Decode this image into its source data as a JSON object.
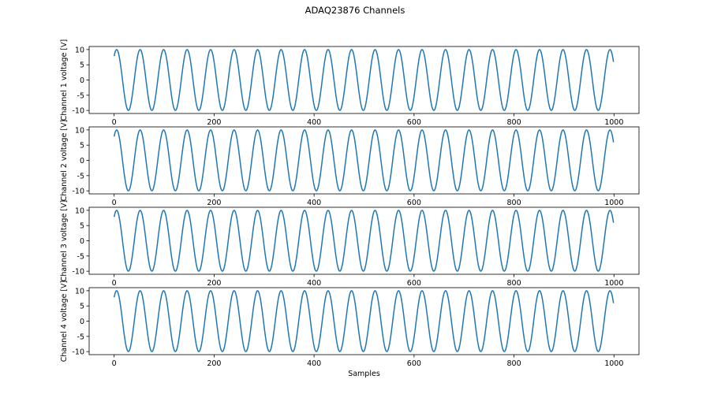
{
  "title": "ADAQ23876 Channels",
  "chart_data": [
    {
      "type": "line",
      "ylabel": "Channel 1 voltage [V]",
      "xlabel": "",
      "xlim": [
        -50,
        1050
      ],
      "ylim": [
        -11,
        11
      ],
      "xticks": [
        0,
        200,
        400,
        600,
        800,
        1000
      ],
      "yticks": [
        -10,
        -5,
        0,
        5,
        10
      ],
      "series": [
        {
          "color": "#1f77b4",
          "amplitude": 10,
          "period_samples": 47,
          "samples": 1000,
          "x_start": 0,
          "x_end": 999
        }
      ]
    },
    {
      "type": "line",
      "ylabel": "Channel 2 voltage [V]",
      "xlabel": "",
      "xlim": [
        -50,
        1050
      ],
      "ylim": [
        -11,
        11
      ],
      "xticks": [
        0,
        200,
        400,
        600,
        800,
        1000
      ],
      "yticks": [
        -10,
        -5,
        0,
        5,
        10
      ],
      "series": [
        {
          "color": "#1f77b4",
          "amplitude": 10,
          "period_samples": 47,
          "samples": 1000,
          "x_start": 0,
          "x_end": 999
        }
      ]
    },
    {
      "type": "line",
      "ylabel": "Channel 3 voltage [V]",
      "xlabel": "",
      "xlim": [
        -50,
        1050
      ],
      "ylim": [
        -11,
        11
      ],
      "xticks": [
        0,
        200,
        400,
        600,
        800,
        1000
      ],
      "yticks": [
        -10,
        -5,
        0,
        5,
        10
      ],
      "series": [
        {
          "color": "#1f77b4",
          "amplitude": 10,
          "period_samples": 47,
          "samples": 1000,
          "x_start": 0,
          "x_end": 999
        }
      ]
    },
    {
      "type": "line",
      "ylabel": "Channel 4 voltage [V]",
      "xlabel": "Samples",
      "xlim": [
        -50,
        1050
      ],
      "ylim": [
        -11,
        11
      ],
      "xticks": [
        0,
        200,
        400,
        600,
        800,
        1000
      ],
      "yticks": [
        -10,
        -5,
        0,
        5,
        10
      ],
      "series": [
        {
          "color": "#1f77b4",
          "amplitude": 10,
          "period_samples": 47,
          "samples": 1000,
          "x_start": 0,
          "x_end": 999
        }
      ]
    }
  ]
}
